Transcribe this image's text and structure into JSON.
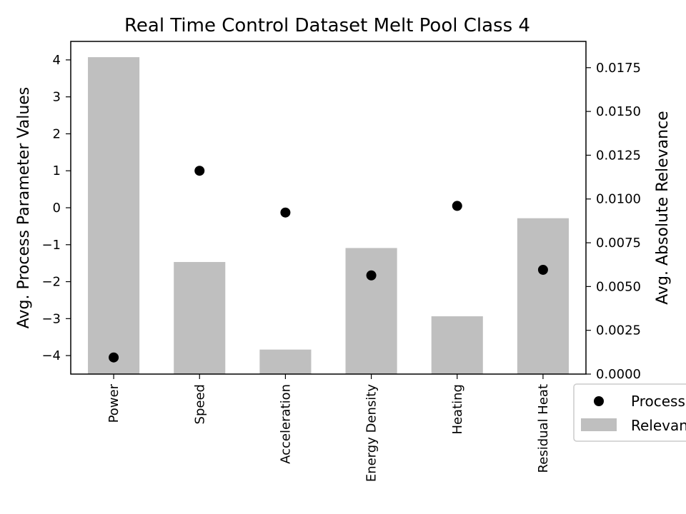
{
  "chart_data": {
    "type": "bar",
    "title": "Real Time Control Dataset Melt Pool Class 4",
    "categories": [
      "Power",
      "Speed",
      "Acceleration",
      "Energy Density",
      "Heating",
      "Residual Heat"
    ],
    "series": [
      {
        "name": "Relevance",
        "type": "bar",
        "axis": "right",
        "color": "#bfbfbf",
        "values": [
          0.0181,
          0.0064,
          0.0014,
          0.0072,
          0.0033,
          0.0089
        ]
      },
      {
        "name": "Process Parameter",
        "type": "scatter",
        "axis": "left",
        "color": "#000000",
        "values": [
          -4.05,
          1.0,
          -0.13,
          -1.83,
          0.05,
          -1.68
        ]
      }
    ],
    "left_axis": {
      "label": "Avg. Process Parameter Values",
      "ylim": [
        -4.5,
        4.5
      ],
      "ticks": [
        4,
        3,
        2,
        1,
        0,
        -1,
        -2,
        -3,
        -4
      ],
      "tick_labels": [
        "4",
        "3",
        "2",
        "1",
        "0",
        "−1",
        "−2",
        "−3",
        "−4"
      ]
    },
    "right_axis": {
      "label": "Avg. Absolute Relevance",
      "ylim": [
        0,
        0.019
      ],
      "ticks": [
        0.0175,
        0.015,
        0.0125,
        0.01,
        0.0075,
        0.005,
        0.0025,
        0.0
      ],
      "tick_labels": [
        "0.0175",
        "0.0150",
        "0.0125",
        "0.0100",
        "0.0075",
        "0.0050",
        "0.0025",
        "0.0000"
      ]
    },
    "legend": {
      "placement": "outside-bottom-right",
      "entries": [
        "Process Parameter",
        "Relevance"
      ]
    },
    "grid": false
  }
}
